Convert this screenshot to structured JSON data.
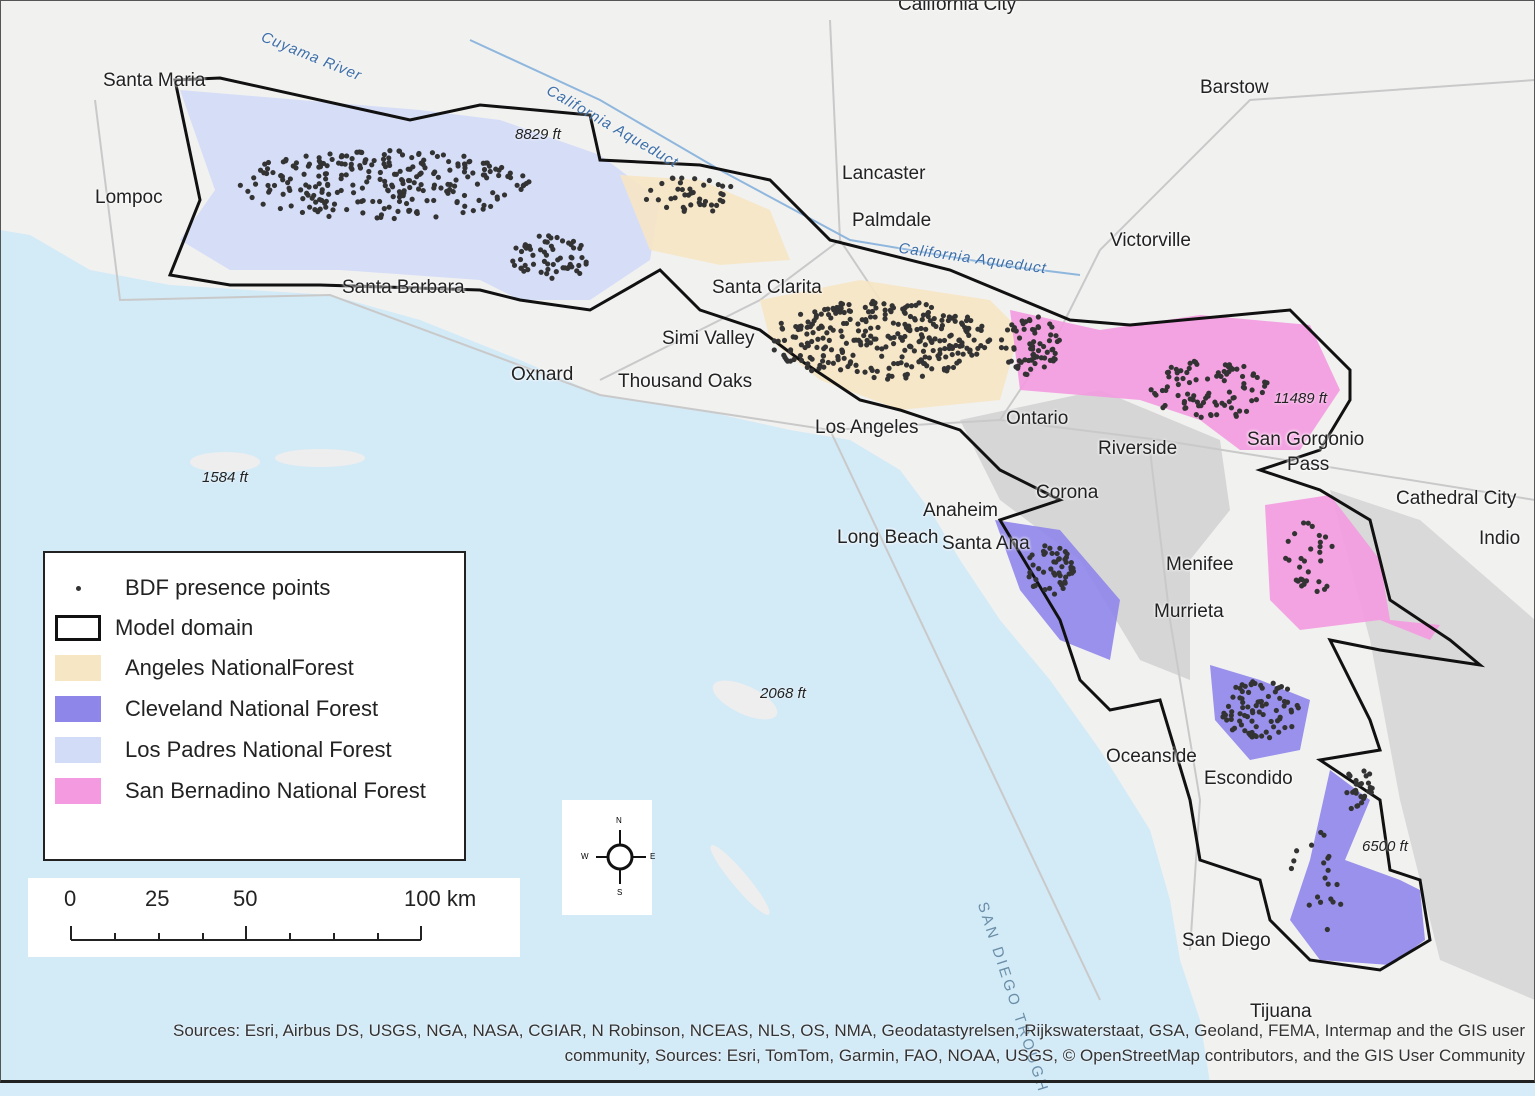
{
  "places": [
    "Santa Maria",
    "Lompoc",
    "Santa Barbara",
    "Oxnard",
    "Thousand Oaks",
    "Simi Valley",
    "Santa Clarita",
    "Lancaster",
    "Palmdale",
    "Victorville",
    "Barstow",
    "California City",
    "Los Angeles",
    "Ontario",
    "Riverside",
    "San Gorgonio",
    "Pass",
    "Corona",
    "Anaheim",
    "Santa Ana",
    "Long Beach",
    "Menifee",
    "Murrieta",
    "Cathedral City",
    "Indio",
    "Oceanside",
    "Escondido",
    "San Diego",
    "Tijuana"
  ],
  "water_labels": [
    "Cuyama River",
    "California Aqueduct",
    "California Aqueduct",
    "SAN DIEGO TROUGH"
  ],
  "elevations": [
    "8829 ft",
    "11489 ft",
    "1584 ft",
    "2068 ft",
    "6500 ft"
  ],
  "legend": {
    "items": [
      {
        "label": "BDF presence points",
        "type": "point",
        "color": "#333333"
      },
      {
        "label": "Model domain",
        "type": "outline",
        "color": "#111111"
      },
      {
        "label": "Angeles NationalForest",
        "type": "fill",
        "color": "#f7e6c4"
      },
      {
        "label": "Cleveland National Forest",
        "type": "fill",
        "color": "#8f86ea"
      },
      {
        "label": "Los Padres National Forest",
        "type": "fill",
        "color": "#d3dcf7"
      },
      {
        "label": "San Bernadino National Forest",
        "type": "fill",
        "color": "#f49ae0"
      }
    ]
  },
  "scale_bar": {
    "ticks": [
      "0",
      "25",
      "50",
      "100 km"
    ]
  },
  "north_arrow": {
    "n": "N",
    "s": "S",
    "e": "E",
    "w": "W"
  },
  "attribution": [
    "Sources: Esri, Airbus DS, USGS, NGA, NASA, CGIAR, N Robinson, NCEAS, NLS, OS, NMA, Geodatastyrelsen, Rijkswaterstaat, GSA, Geoland, FEMA, Intermap and the GIS user",
    "community, Sources: Esri, TomTom, Garmin, FAO, NOAA, USGS, © OpenStreetMap contributors, and the GIS User Community"
  ]
}
